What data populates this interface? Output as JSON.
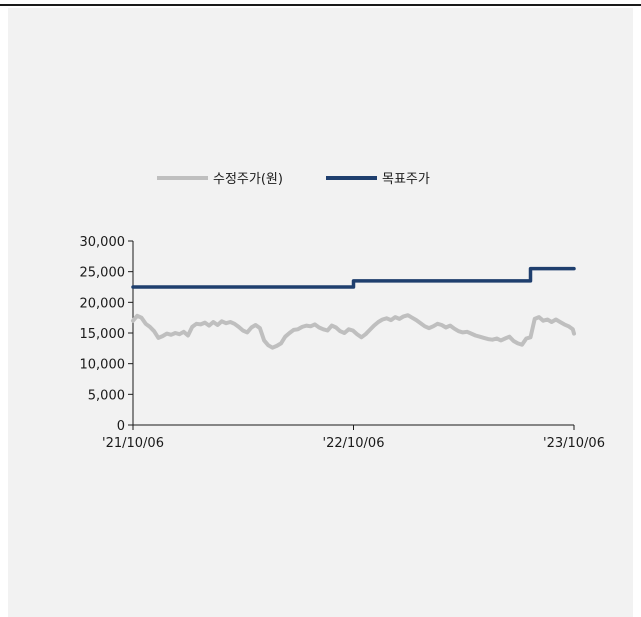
{
  "chart_data": {
    "type": "line",
    "title": "",
    "xlabel": "",
    "ylabel": "",
    "ylim": [
      0,
      30000
    ],
    "yticks": [
      "30,000",
      "25,000",
      "20,000",
      "15,000",
      "10,000",
      "5,000",
      "0"
    ],
    "xticks": [
      "'21/10/06",
      "'22/10/06",
      "'23/10/06"
    ],
    "xlim": [
      "2021-10-06",
      "2023-10-06"
    ],
    "legend_position": "top",
    "grid": false,
    "series": [
      {
        "name": "수정주가(원)",
        "color": "#bfbfbf",
        "points": [
          [
            "2021-10-06",
            17000
          ],
          [
            "2021-10-13",
            17800
          ],
          [
            "2021-10-20",
            17500
          ],
          [
            "2021-10-27",
            16500
          ],
          [
            "2021-11-03",
            16000
          ],
          [
            "2021-11-10",
            15300
          ],
          [
            "2021-11-17",
            14200
          ],
          [
            "2021-11-24",
            14500
          ],
          [
            "2021-12-01",
            14900
          ],
          [
            "2021-12-08",
            14700
          ],
          [
            "2021-12-15",
            15000
          ],
          [
            "2021-12-22",
            14800
          ],
          [
            "2021-12-29",
            15200
          ],
          [
            "2022-01-05",
            14600
          ],
          [
            "2022-01-12",
            16000
          ],
          [
            "2022-01-19",
            16500
          ],
          [
            "2022-01-26",
            16400
          ],
          [
            "2022-02-02",
            16700
          ],
          [
            "2022-02-09",
            16200
          ],
          [
            "2022-02-16",
            16800
          ],
          [
            "2022-02-23",
            16300
          ],
          [
            "2022-03-02",
            16900
          ],
          [
            "2022-03-09",
            16600
          ],
          [
            "2022-03-16",
            16800
          ],
          [
            "2022-03-23",
            16500
          ],
          [
            "2022-03-30",
            16000
          ],
          [
            "2022-04-06",
            15400
          ],
          [
            "2022-04-13",
            15100
          ],
          [
            "2022-04-20",
            15900
          ],
          [
            "2022-04-27",
            16300
          ],
          [
            "2022-05-04",
            15800
          ],
          [
            "2022-05-11",
            13800
          ],
          [
            "2022-05-18",
            13000
          ],
          [
            "2022-05-25",
            12600
          ],
          [
            "2022-06-01",
            12900
          ],
          [
            "2022-06-08",
            13300
          ],
          [
            "2022-06-15",
            14400
          ],
          [
            "2022-06-22",
            15000
          ],
          [
            "2022-06-29",
            15500
          ],
          [
            "2022-07-06",
            15600
          ],
          [
            "2022-07-13",
            16000
          ],
          [
            "2022-07-20",
            16200
          ],
          [
            "2022-07-27",
            16100
          ],
          [
            "2022-08-03",
            16400
          ],
          [
            "2022-08-10",
            15900
          ],
          [
            "2022-08-17",
            15600
          ],
          [
            "2022-08-24",
            15400
          ],
          [
            "2022-08-31",
            16200
          ],
          [
            "2022-09-07",
            15900
          ],
          [
            "2022-09-14",
            15300
          ],
          [
            "2022-09-21",
            15000
          ],
          [
            "2022-09-28",
            15600
          ],
          [
            "2022-10-05",
            15400
          ],
          [
            "2022-10-12",
            14800
          ],
          [
            "2022-10-19",
            14300
          ],
          [
            "2022-10-26",
            14800
          ],
          [
            "2022-11-02",
            15500
          ],
          [
            "2022-11-09",
            16200
          ],
          [
            "2022-11-16",
            16800
          ],
          [
            "2022-11-23",
            17200
          ],
          [
            "2022-11-30",
            17400
          ],
          [
            "2022-12-07",
            17100
          ],
          [
            "2022-12-14",
            17600
          ],
          [
            "2022-12-21",
            17300
          ],
          [
            "2022-12-28",
            17700
          ],
          [
            "2023-01-04",
            17900
          ],
          [
            "2023-01-11",
            17500
          ],
          [
            "2023-01-18",
            17100
          ],
          [
            "2023-01-25",
            16600
          ],
          [
            "2023-02-01",
            16100
          ],
          [
            "2023-02-08",
            15800
          ],
          [
            "2023-02-15",
            16100
          ],
          [
            "2023-02-22",
            16500
          ],
          [
            "2023-03-01",
            16300
          ],
          [
            "2023-03-08",
            15900
          ],
          [
            "2023-03-15",
            16200
          ],
          [
            "2023-03-22",
            15700
          ],
          [
            "2023-03-29",
            15300
          ],
          [
            "2023-04-05",
            15100
          ],
          [
            "2023-04-12",
            15200
          ],
          [
            "2023-04-19",
            14900
          ],
          [
            "2023-04-26",
            14600
          ],
          [
            "2023-05-03",
            14400
          ],
          [
            "2023-05-10",
            14200
          ],
          [
            "2023-05-17",
            14000
          ],
          [
            "2023-05-24",
            13900
          ],
          [
            "2023-05-31",
            14100
          ],
          [
            "2023-06-07",
            13800
          ],
          [
            "2023-06-14",
            14100
          ],
          [
            "2023-06-21",
            14400
          ],
          [
            "2023-06-28",
            13700
          ],
          [
            "2023-07-05",
            13300
          ],
          [
            "2023-07-12",
            13100
          ],
          [
            "2023-07-19",
            14100
          ],
          [
            "2023-07-26",
            14300
          ],
          [
            "2023-08-02",
            17300
          ],
          [
            "2023-08-09",
            17600
          ],
          [
            "2023-08-16",
            17000
          ],
          [
            "2023-08-23",
            17200
          ],
          [
            "2023-08-30",
            16800
          ],
          [
            "2023-09-06",
            17200
          ],
          [
            "2023-09-13",
            16800
          ],
          [
            "2023-09-20",
            16400
          ],
          [
            "2023-09-27",
            16100
          ],
          [
            "2023-10-04",
            15600
          ],
          [
            "2023-10-06",
            14900
          ]
        ]
      },
      {
        "name": "목표주가",
        "color": "#1f3f6e",
        "points": [
          [
            "2021-10-06",
            22500
          ],
          [
            "2022-10-06",
            22500
          ],
          [
            "2022-10-06",
            23500
          ],
          [
            "2023-07-26",
            23500
          ],
          [
            "2023-07-26",
            25500
          ],
          [
            "2023-10-06",
            25500
          ]
        ]
      }
    ]
  }
}
